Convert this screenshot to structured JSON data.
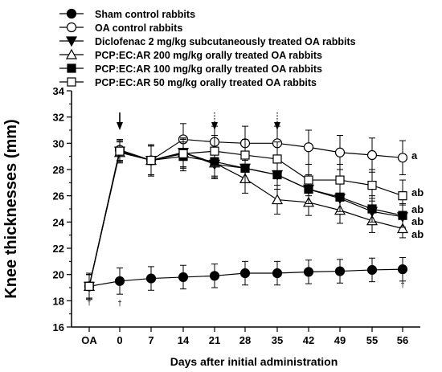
{
  "chart_data": {
    "type": "line",
    "xlabel": "Days after initial administration",
    "ylabel": "Knee thicknesses (mm)",
    "x_categories": [
      "OA",
      "0",
      "7",
      "14",
      "21",
      "28",
      "35",
      "42",
      "49",
      "55",
      "56"
    ],
    "ylim": [
      16,
      34
    ],
    "yticks": [
      "16",
      "18",
      "20",
      "22",
      "24",
      "26",
      "28",
      "30",
      "32",
      "34"
    ],
    "grid": false,
    "legend_position": "top-left",
    "series": [
      {
        "name": "Sham control rabbits",
        "marker": "circle-filled",
        "values": [
          19.1,
          19.5,
          19.7,
          19.8,
          19.9,
          20.1,
          20.1,
          20.2,
          20.25,
          20.35,
          20.4
        ],
        "errors": [
          1.0,
          1.0,
          0.9,
          0.9,
          0.9,
          0.9,
          0.9,
          0.9,
          0.9,
          0.9,
          0.9
        ],
        "end_label": ""
      },
      {
        "name": "OA control rabbits",
        "marker": "circle-open",
        "values": [
          19.1,
          29.5,
          28.7,
          30.3,
          30.1,
          30.0,
          30.0,
          29.7,
          29.3,
          29.1,
          28.9
        ],
        "errors": [
          0.9,
          0.8,
          1.2,
          1.2,
          1.2,
          1.3,
          1.3,
          1.3,
          1.3,
          1.3,
          1.3
        ],
        "end_label": "a"
      },
      {
        "name": "Diclofenac 2 mg/kg subcutaneously treated OA rabbits",
        "marker": "triangle-down-filled",
        "values": [
          19.1,
          29.4,
          28.7,
          29.3,
          28.4,
          28.1,
          27.6,
          26.5,
          25.8,
          24.8,
          24.4
        ],
        "errors": [
          0.9,
          0.8,
          1.1,
          1.1,
          1.1,
          1.1,
          1.1,
          1.1,
          1.1,
          1.0,
          0.9
        ],
        "end_label": "ab"
      },
      {
        "name": "PCP:EC:AR 200 mg/kg orally treated OA rabbits",
        "marker": "triangle-up-open",
        "values": [
          19.1,
          29.3,
          28.7,
          29.3,
          28.5,
          27.3,
          25.7,
          25.5,
          24.9,
          24.1,
          23.5
        ],
        "errors": [
          0.9,
          0.8,
          1.1,
          1.1,
          1.1,
          1.1,
          1.1,
          1.0,
          1.0,
          0.9,
          0.7
        ],
        "end_label": "ab"
      },
      {
        "name": "PCP:EC:AR 100 mg/kg orally treated OA rabbits",
        "marker": "square-filled",
        "values": [
          19.1,
          29.4,
          28.7,
          29.0,
          28.6,
          28.1,
          27.6,
          26.5,
          25.9,
          25.0,
          24.5
        ],
        "errors": [
          0.9,
          0.8,
          1.1,
          1.1,
          1.1,
          1.1,
          1.1,
          1.1,
          1.1,
          1.0,
          0.9
        ],
        "end_label": "ab"
      },
      {
        "name": "PCP:EC:AR 50 mg/kg orally treated OA rabbits",
        "marker": "square-open",
        "values": [
          19.1,
          29.4,
          28.7,
          29.2,
          29.4,
          29.1,
          28.8,
          27.2,
          27.2,
          26.8,
          26.0
        ],
        "errors": [
          0.9,
          0.8,
          1.1,
          1.1,
          1.2,
          1.2,
          1.3,
          1.2,
          1.2,
          1.2,
          1.2
        ],
        "end_label": "ab"
      }
    ],
    "arrows": [
      {
        "category": "0",
        "style": "solid"
      },
      {
        "category": "21",
        "style": "dotted"
      },
      {
        "category": "35",
        "style": "dotted"
      }
    ],
    "dagger_annotations": [
      {
        "category": "OA",
        "symbol": "†"
      },
      {
        "category": "0",
        "symbol": "†"
      },
      {
        "category": "56",
        "symbol": "†"
      }
    ]
  }
}
